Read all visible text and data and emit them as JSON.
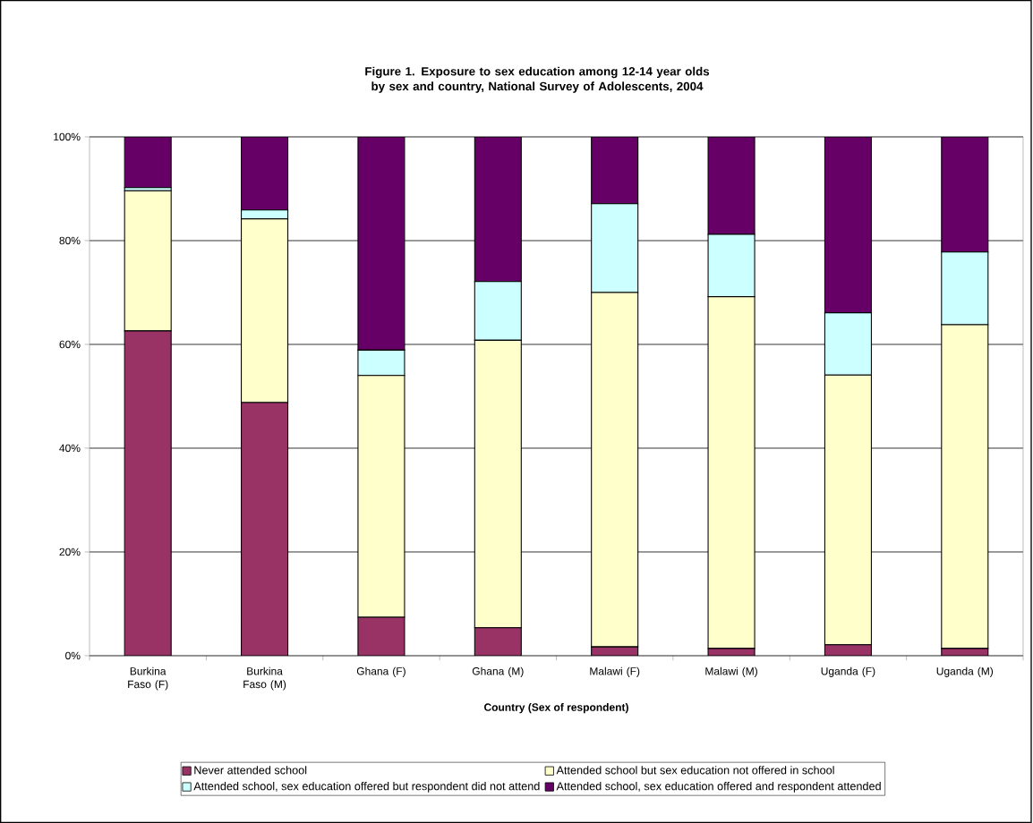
{
  "chart_data": {
    "type": "bar",
    "stacked": true,
    "title": "Figure 1. Exposure to sex education among 12-14 year olds by sex and country, National Survey of Adolescents, 2004",
    "xlabel": "Country (Sex of respondent)",
    "categories": [
      "Burkina Faso (F)",
      "Burkina Faso (M)",
      "Ghana (F)",
      "Ghana (M)",
      "Malawi (F)",
      "Malawi (M)",
      "Uganda (F)",
      "Uganda (M)"
    ],
    "series": [
      {
        "name": "Never attended school",
        "color": "#993366",
        "values": [
          62.6,
          48.8,
          7.4,
          5.4,
          1.7,
          1.4,
          2.1,
          1.4
        ]
      },
      {
        "name": "Attended school but sex education not offered in school",
        "color": "#ffffcc",
        "values": [
          27.0,
          35.4,
          46.6,
          55.4,
          68.3,
          67.8,
          52.0,
          62.4
        ]
      },
      {
        "name": "Attended school, sex education offered but respondent did not attend",
        "color": "#ccffff",
        "values": [
          0.6,
          1.7,
          4.9,
          11.3,
          17.1,
          12.0,
          12.0,
          14.0
        ]
      },
      {
        "name": "Attended school, sex education offered and respondent attended",
        "color": "#660066",
        "values": [
          9.8,
          14.1,
          41.1,
          27.9,
          12.9,
          18.8,
          33.9,
          22.2
        ]
      }
    ],
    "ylim": [
      0,
      100
    ],
    "yticks": [
      {
        "value": 0,
        "label": "0%"
      },
      {
        "value": 20,
        "label": "20%"
      },
      {
        "value": 40,
        "label": "40%"
      },
      {
        "value": 60,
        "label": "60%"
      },
      {
        "value": 80,
        "label": "80%"
      },
      {
        "value": 100,
        "label": "100%"
      }
    ],
    "grid": "y",
    "legend": "bottom"
  }
}
